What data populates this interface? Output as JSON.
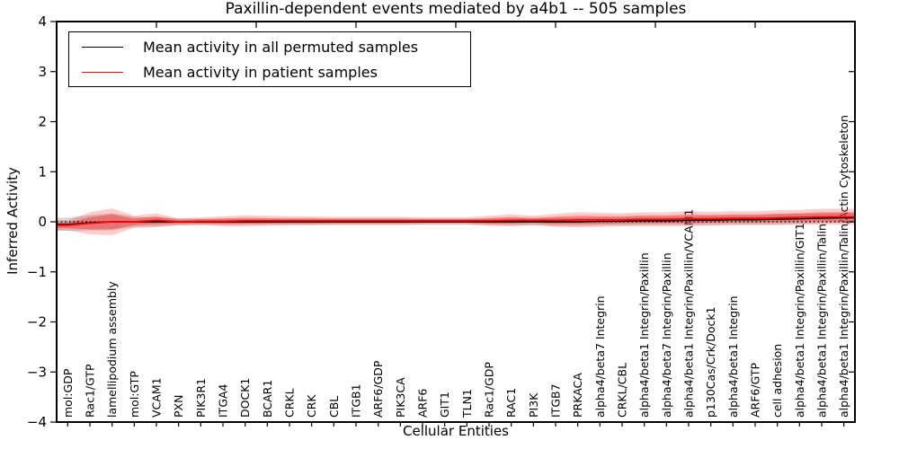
{
  "figure": {
    "title": "Paxillin-dependent events mediated by a4b1 -- 505 samples"
  },
  "chart_data": {
    "type": "line",
    "title": "Paxillin-dependent events mediated by a4b1 -- 505 samples",
    "xlabel": "Cellular Entities",
    "ylabel": "Inferred Activity",
    "ylim": [
      -4,
      4
    ],
    "yticks": [
      4,
      3,
      2,
      1,
      0,
      -1,
      -2,
      -3,
      -4
    ],
    "grid": false,
    "legend_position": "upper-left",
    "zero_line": {
      "y": 0,
      "style": "dotted",
      "color": "#000000"
    },
    "colors": {
      "permuted_line": "#000000",
      "patient_line": "#ff0000",
      "permuted_band": "#999999",
      "patient_band": "#ff0000",
      "frame": "#000000",
      "background": "#ffffff"
    },
    "entities": [
      "mol:GDP",
      "Rac1/GTP",
      "lamellipodium assembly",
      "mol:GTP",
      "VCAM1",
      "PXN",
      "PIK3R1",
      "ITGA4",
      "DOCK1",
      "BCAR1",
      "CRKL",
      "CRK",
      "CBL",
      "ITGB1",
      "ARF6/GDP",
      "PIK3CA",
      "ARF6",
      "GIT1",
      "TLN1",
      "Rac1/GDP",
      "RAC1",
      "PI3K",
      "ITGB7",
      "PRKACA",
      "alpha4/beta7 Integrin",
      "CRKL/CBL",
      "alpha4/beta1 Integrin/Paxillin",
      "alpha4/beta7 Integrin/Paxillin",
      "alpha4/beta1 Integrin/Paxillin/VCAM1",
      "p130Cas/Crk/Dock1",
      "alpha4/beta1 Integrin",
      "ARF6/GTP",
      "cell adhesion",
      "alpha4/beta1 Integrin/Paxillin/GIT1",
      "alpha4/beta1 Integrin/Paxillin/Talin",
      "alpha4/beta1 Integrin/Paxillin/Talin/Actin Cytoskeleton"
    ],
    "series": [
      {
        "name": "Mean activity in all permuted samples",
        "color": "#000000",
        "values": [
          -0.05,
          -0.02,
          0.0,
          0.0,
          0.0,
          0.0,
          0.0,
          0.0,
          0.0,
          0.0,
          0.0,
          0.0,
          0.0,
          0.0,
          0.0,
          0.0,
          0.0,
          0.0,
          0.0,
          0.0,
          0.0,
          0.0,
          0.0,
          0.0,
          0.01,
          0.01,
          0.02,
          0.02,
          0.03,
          0.03,
          0.04,
          0.04,
          0.05,
          0.06,
          0.07,
          0.08
        ],
        "std": [
          0.13,
          0.15,
          0.17,
          0.1,
          0.09,
          0.07,
          0.06,
          0.06,
          0.06,
          0.06,
          0.06,
          0.06,
          0.06,
          0.06,
          0.06,
          0.06,
          0.06,
          0.06,
          0.06,
          0.06,
          0.07,
          0.07,
          0.08,
          0.08,
          0.08,
          0.08,
          0.08,
          0.08,
          0.09,
          0.09,
          0.09,
          0.09,
          0.1,
          0.1,
          0.1,
          0.1
        ]
      },
      {
        "name": "Mean activity in patient samples",
        "color": "#ff0000",
        "values": [
          -0.07,
          -0.03,
          0.0,
          0.0,
          0.03,
          0.0,
          0.01,
          0.01,
          0.02,
          0.02,
          0.02,
          0.02,
          0.02,
          0.02,
          0.02,
          0.02,
          0.02,
          0.02,
          0.02,
          0.02,
          0.03,
          0.03,
          0.03,
          0.04,
          0.04,
          0.04,
          0.05,
          0.05,
          0.06,
          0.06,
          0.07,
          0.07,
          0.08,
          0.09,
          0.1,
          0.1
        ],
        "std": [
          0.1,
          0.22,
          0.27,
          0.12,
          0.14,
          0.07,
          0.08,
          0.1,
          0.11,
          0.1,
          0.09,
          0.09,
          0.08,
          0.08,
          0.08,
          0.08,
          0.07,
          0.07,
          0.07,
          0.1,
          0.12,
          0.09,
          0.13,
          0.15,
          0.14,
          0.13,
          0.14,
          0.14,
          0.15,
          0.14,
          0.14,
          0.14,
          0.15,
          0.15,
          0.16,
          0.16
        ]
      }
    ]
  }
}
